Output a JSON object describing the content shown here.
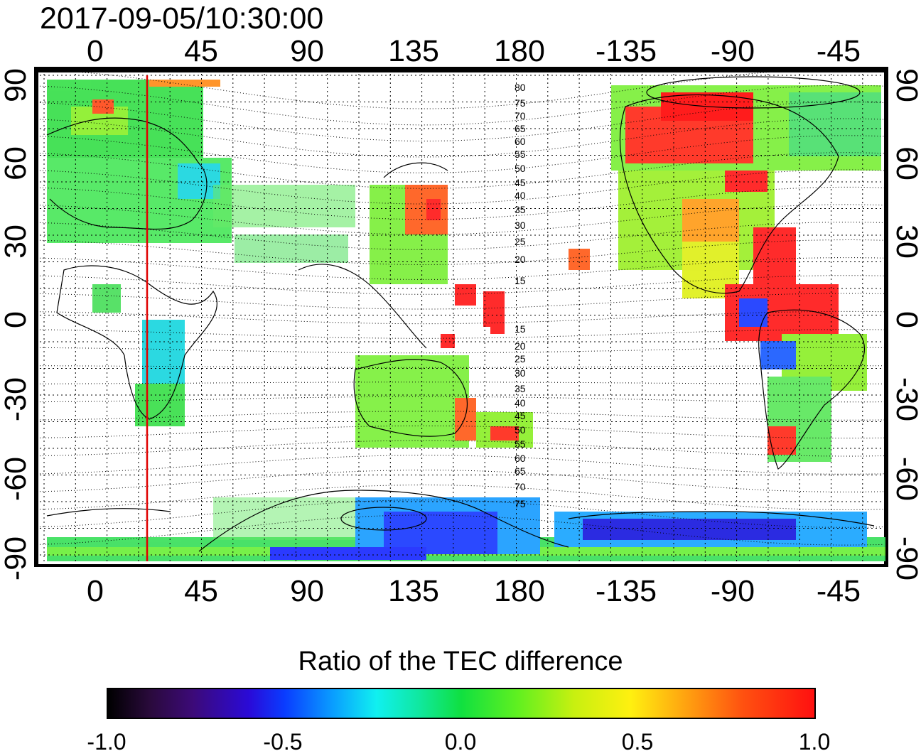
{
  "title": "2017-09-05/10:30:00",
  "map": {
    "x_ticks_top": [
      "0",
      "45",
      "90",
      "135",
      "180",
      "-135",
      "-90",
      "-45"
    ],
    "x_ticks_bottom": [
      "0",
      "45",
      "90",
      "135",
      "180",
      "-135",
      "-90",
      "-45"
    ],
    "y_ticks": [
      "90",
      "60",
      "30",
      "0",
      "-30",
      "-60",
      "-90"
    ],
    "y_ticks_right": [
      "90",
      "60",
      "30",
      "0",
      "-30",
      "-60",
      "-90"
    ],
    "contour_labels": [
      "80",
      "75",
      "70",
      "65",
      "60",
      "55",
      "50",
      "45",
      "40",
      "35",
      "30",
      "25",
      "20",
      "15",
      "15",
      "20",
      "25",
      "30",
      "35",
      "40",
      "45",
      "50",
      "55",
      "60",
      "65",
      "70",
      "75"
    ],
    "marker_line_color": "#e00000"
  },
  "colorbar": {
    "title": "Ratio of the TEC difference",
    "labels": [
      "-1.0",
      "-0.5",
      "0.0",
      "0.5",
      "1.0"
    ],
    "colors": [
      "#000000",
      "#3c0a78",
      "#0a3cff",
      "#10f0f0",
      "#10e040",
      "#fff010",
      "#ff1010"
    ]
  }
}
